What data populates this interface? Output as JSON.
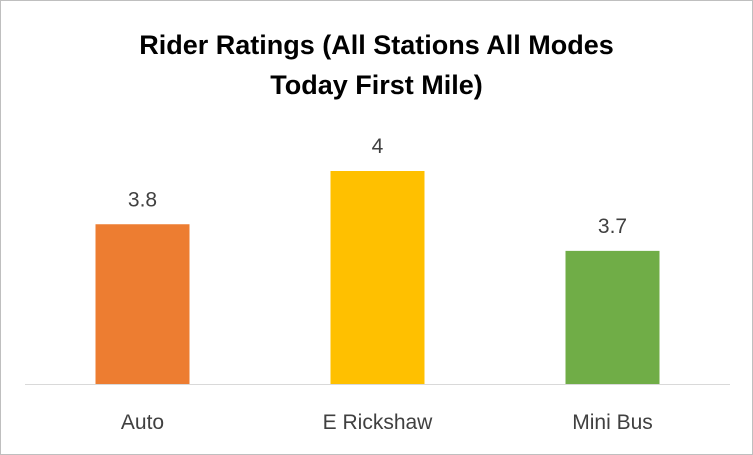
{
  "chart_data": {
    "type": "bar",
    "title": "Rider Ratings (All Stations All Modes\nToday First Mile)",
    "categories": [
      "Auto",
      "E Rickshaw",
      "Mini Bus"
    ],
    "values": [
      3.8,
      4,
      3.7
    ],
    "data_labels": [
      "3.8",
      "4",
      "3.7"
    ],
    "colors": [
      "#ed7d31",
      "#ffc000",
      "#70ad47"
    ],
    "xlabel": "",
    "ylabel": "",
    "ylim": [
      3.2,
      4.1
    ],
    "grid": false,
    "legend": "none"
  }
}
